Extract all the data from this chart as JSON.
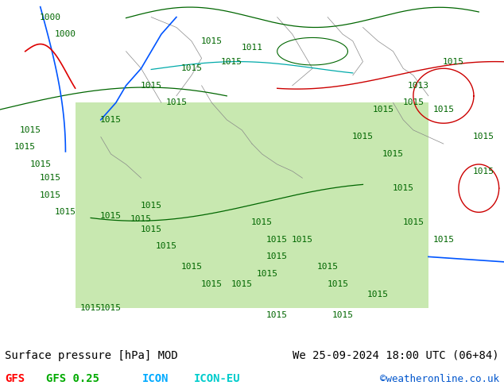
{
  "title_left": "Surface pressure [hPa] MOD",
  "title_right": "We 25-09-2024 18:00 UTC (06+84)",
  "legend_items": [
    {
      "label": "GFS",
      "color": "#ff0000"
    },
    {
      "label": "GFS 0.25",
      "color": "#00aa00"
    },
    {
      "label": "ICON",
      "color": "#00aaff"
    },
    {
      "label": "ICON-EU",
      "color": "#00cccc"
    }
  ],
  "copyright": "©weatheronline.co.uk",
  "bg_color": "#a8d878",
  "map_bg": "#b8e890",
  "sea_color": "#d0eec0",
  "land_color": "#a8d878",
  "fig_bg": "#ffffff",
  "bottom_bar_bg": "#ffffff",
  "font_size_title": 10,
  "font_size_legend": 10,
  "font_size_copyright": 9
}
